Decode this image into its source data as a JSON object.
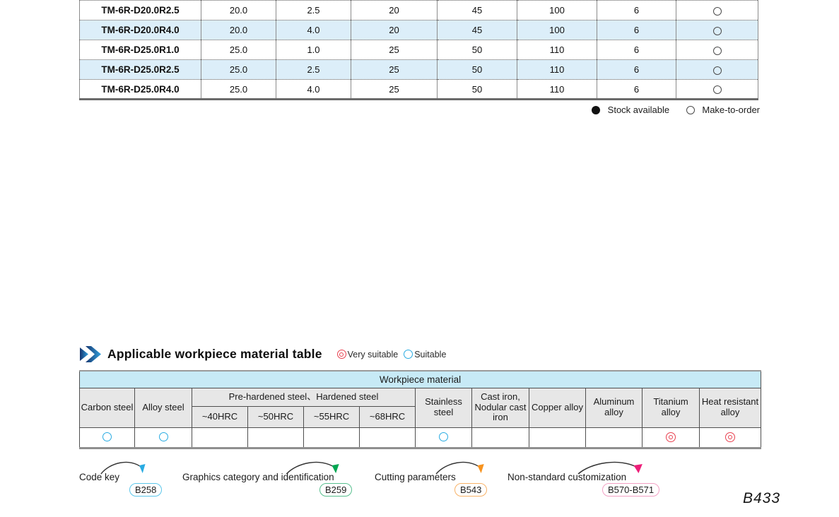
{
  "product_table": {
    "rows": [
      {
        "model": "TM-6R-D20.0R2.5",
        "values": [
          "20.0",
          "2.5",
          "20",
          "45",
          "100",
          "6"
        ],
        "stock": "make-to-order"
      },
      {
        "model": "TM-6R-D20.0R4.0",
        "values": [
          "20.0",
          "4.0",
          "20",
          "45",
          "100",
          "6"
        ],
        "stock": "make-to-order"
      },
      {
        "model": "TM-6R-D25.0R1.0",
        "values": [
          "25.0",
          "1.0",
          "25",
          "50",
          "110",
          "6"
        ],
        "stock": "make-to-order"
      },
      {
        "model": "TM-6R-D25.0R2.5",
        "values": [
          "25.0",
          "2.5",
          "25",
          "50",
          "110",
          "6"
        ],
        "stock": "make-to-order"
      },
      {
        "model": "TM-6R-D25.0R4.0",
        "values": [
          "25.0",
          "4.0",
          "25",
          "50",
          "110",
          "6"
        ],
        "stock": "make-to-order"
      }
    ],
    "legend": {
      "stock_available": "Stock available",
      "make_to_order": "Make-to-order"
    }
  },
  "material_section": {
    "title": "Applicable workpiece material table",
    "legend": [
      {
        "symbol": "very-suitable",
        "label": "Very suitable"
      },
      {
        "symbol": "suitable",
        "label": "Suitable"
      }
    ],
    "table_header": "Workpiece material",
    "columns": {
      "carbon": "Carbon steel",
      "alloy": "Alloy steel",
      "prehardened_group": "Pre-hardened steel、Hardened steel",
      "hrc": [
        "~40HRC",
        "~50HRC",
        "~55HRC",
        "~68HRC"
      ],
      "stainless": "Stainless steel",
      "cast_iron": "Cast iron, Nodular cast iron",
      "copper": "Copper alloy",
      "aluminum": "Aluminum alloy",
      "titanium": "Titanium alloy",
      "heat_resistant": "Heat resistant alloy"
    },
    "ratings": [
      "suitable",
      "suitable",
      "",
      "",
      "",
      "",
      "suitable",
      "",
      "",
      "",
      "very-suitable",
      "very-suitable"
    ]
  },
  "footer_links": [
    {
      "label": "Code key",
      "page": "B258",
      "arrow_color": "#29abe2",
      "box_color": "#5bc6ea"
    },
    {
      "label": "Graphics category and identification",
      "page": "B259",
      "arrow_color": "#00a651",
      "box_color": "#57bf8e"
    },
    {
      "label": "Cutting parameters",
      "page": "B543",
      "arrow_color": "#f7931e",
      "box_color": "#f8b267"
    },
    {
      "label": "Non-standard customization",
      "page": "B570-B571",
      "arrow_color": "#ed1e79",
      "box_color": "#f2a0c4"
    }
  ],
  "page_number": "B433",
  "colors": {
    "suitable_ring": "#29abe2",
    "very_suitable_ring": "#e8404f",
    "alt_row": "#dceef9",
    "table_header_cyan": "#c7eaf6",
    "table_header_gray": "#e7e7e7"
  }
}
